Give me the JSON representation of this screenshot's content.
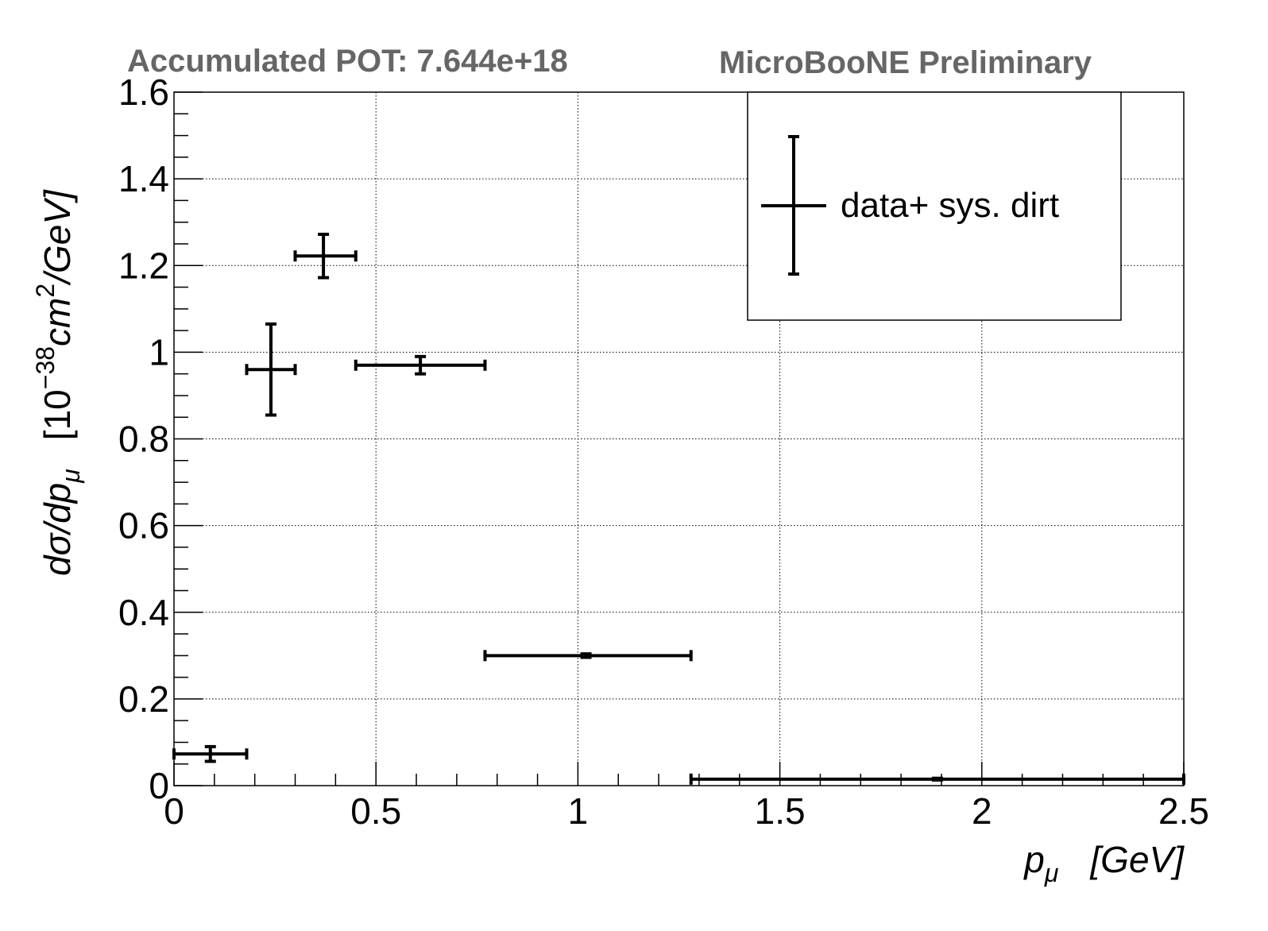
{
  "header": {
    "left_text": "Accumulated POT: 7.644e+18",
    "right_text": "MicroBooNE Preliminary"
  },
  "chart_data": {
    "type": "scatter",
    "title": "",
    "xlabel": {
      "main": "p",
      "sub": "μ",
      "units": "[GeV]"
    },
    "ylabel": {
      "main": "dσ/dp",
      "sub": "μ",
      "units_prefix": "[10",
      "units_exp": "−38",
      "units_mid": "cm",
      "units_exp2": "2",
      "units_suffix": "/GeV]"
    },
    "xlim": [
      0,
      2.5
    ],
    "ylim": [
      0,
      1.6
    ],
    "x_ticks": [
      0,
      0.5,
      1,
      1.5,
      2,
      2.5
    ],
    "x_tick_labels": [
      "0",
      "0.5",
      "1",
      "1.5",
      "2",
      "2.5"
    ],
    "y_ticks": [
      0,
      0.2,
      0.4,
      0.6,
      0.8,
      1,
      1.2,
      1.4,
      1.6
    ],
    "y_tick_labels": [
      "0",
      "0.2",
      "0.4",
      "0.6",
      "0.8",
      "1",
      "1.2",
      "1.4",
      "1.6"
    ],
    "grid": true,
    "legend_position": "top-right",
    "colors": {
      "marker": "#000000",
      "header": "#666666",
      "grid": "#000000"
    },
    "series": [
      {
        "name": "data+ sys. dirt",
        "points": [
          {
            "x": 0.09,
            "y": 0.073,
            "xlow": 0.0,
            "xhigh": 0.18,
            "ylow": 0.056,
            "yhigh": 0.09
          },
          {
            "x": 0.24,
            "y": 0.96,
            "xlow": 0.18,
            "xhigh": 0.3,
            "ylow": 0.855,
            "yhigh": 1.065
          },
          {
            "x": 0.37,
            "y": 1.222,
            "xlow": 0.3,
            "xhigh": 0.45,
            "ylow": 1.172,
            "yhigh": 1.272
          },
          {
            "x": 0.61,
            "y": 0.97,
            "xlow": 0.45,
            "xhigh": 0.77,
            "ylow": 0.95,
            "yhigh": 0.99
          },
          {
            "x": 1.02,
            "y": 0.3,
            "xlow": 0.77,
            "xhigh": 1.28,
            "ylow": 0.296,
            "yhigh": 0.304
          },
          {
            "x": 1.89,
            "y": 0.015,
            "xlow": 1.28,
            "xhigh": 2.5,
            "ylow": 0.013,
            "yhigh": 0.017
          }
        ]
      }
    ]
  }
}
